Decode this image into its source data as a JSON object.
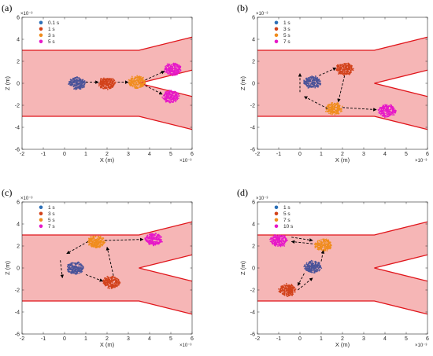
{
  "figure": {
    "colors": {
      "channel_fill": "#f6b6b6",
      "channel_edge": "#e0151b",
      "blue": "#4a5399",
      "red": "#d2421b",
      "orange": "#f08d1e",
      "magenta": "#e619c8",
      "arrow": "#000000",
      "legend_blue": "#2c6fb7"
    }
  },
  "chart_data": [
    {
      "panel": "(a)",
      "type": "scatter",
      "xlabel": "X (m)",
      "ylabel": "Z (m)",
      "xlim": [
        -2,
        6
      ],
      "ylim": [
        -6,
        6
      ],
      "x_ticks": [
        "-2",
        "-1",
        "0",
        "1",
        "2",
        "3",
        "4",
        "5",
        "6"
      ],
      "y_ticks": [
        "-6",
        "-4",
        "-2",
        "0",
        "2",
        "4",
        "6"
      ],
      "x_exponent": "×10⁻³",
      "y_exponent": "×10⁻³",
      "grid": false,
      "legend_position": "top-left",
      "series": [
        {
          "name": "0.1 s",
          "color": "blue",
          "center": [
            0.6,
            0.0
          ]
        },
        {
          "name": "1 s",
          "color": "red",
          "center": [
            2.0,
            0.0
          ]
        },
        {
          "name": "3 s",
          "color": "orange",
          "center": [
            3.4,
            0.1
          ]
        },
        {
          "name": "5 s",
          "color": "magenta",
          "clouds": [
            [
              5.1,
              1.3
            ],
            [
              5.0,
              -1.2
            ]
          ]
        }
      ],
      "arrows": [
        [
          [
            1.0,
            0.1
          ],
          [
            1.6,
            0.1
          ]
        ],
        [
          [
            2.5,
            0.1
          ],
          [
            3.0,
            0.1
          ]
        ],
        [
          [
            3.8,
            0.3
          ],
          [
            4.7,
            1.1
          ]
        ],
        [
          [
            3.8,
            -0.2
          ],
          [
            4.6,
            -1.0
          ]
        ]
      ]
    },
    {
      "panel": "(b)",
      "type": "scatter",
      "xlabel": "X (m)",
      "ylabel": "Z (m)",
      "xlim": [
        -2,
        6
      ],
      "ylim": [
        -6,
        6
      ],
      "x_ticks": [
        "-2",
        "-1",
        "0",
        "1",
        "2",
        "3",
        "4",
        "5",
        "6"
      ],
      "y_ticks": [
        "-6",
        "-4",
        "-2",
        "0",
        "2",
        "4",
        "6"
      ],
      "x_exponent": "×10⁻³",
      "y_exponent": "×10⁻³",
      "grid": false,
      "legend_position": "top-left",
      "series": [
        {
          "name": "1 s",
          "color": "blue",
          "center": [
            0.6,
            0.1
          ]
        },
        {
          "name": "3 s",
          "color": "red",
          "center": [
            2.1,
            1.3
          ]
        },
        {
          "name": "5 s",
          "color": "orange",
          "center": [
            1.6,
            -2.3
          ]
        },
        {
          "name": "7 s",
          "color": "magenta",
          "center": [
            4.1,
            -2.5
          ]
        }
      ],
      "arrows": [
        [
          [
            0.9,
            0.7
          ],
          [
            1.7,
            1.4
          ]
        ],
        [
          [
            2.1,
            0.7
          ],
          [
            1.8,
            -1.7
          ]
        ],
        [
          [
            1.3,
            -2.3
          ],
          [
            0.2,
            -1.2
          ]
        ],
        [
          [
            0.0,
            -0.8
          ],
          [
            0.0,
            0.9
          ]
        ],
        [
          [
            2.0,
            -2.2
          ],
          [
            3.6,
            -2.4
          ]
        ]
      ]
    },
    {
      "panel": "(c)",
      "type": "scatter",
      "xlabel": "X (m)",
      "ylabel": "Z (m)",
      "xlim": [
        -2,
        6
      ],
      "ylim": [
        -6,
        6
      ],
      "x_ticks": [
        "-2",
        "-1",
        "0",
        "1",
        "2",
        "3",
        "4",
        "5",
        "6"
      ],
      "y_ticks": [
        "-6",
        "-4",
        "-2",
        "0",
        "2",
        "4",
        "6"
      ],
      "x_exponent": "×10⁻³",
      "y_exponent": "×10⁻³",
      "grid": false,
      "legend_position": "top-left",
      "series": [
        {
          "name": "1 s",
          "color": "blue",
          "center": [
            0.5,
            0.0
          ]
        },
        {
          "name": "3 s",
          "color": "red",
          "center": [
            2.2,
            -1.3
          ]
        },
        {
          "name": "5 s",
          "color": "orange",
          "center": [
            1.5,
            2.4
          ]
        },
        {
          "name": "7 s",
          "color": "magenta",
          "center": [
            4.2,
            2.6
          ]
        }
      ],
      "arrows": [
        [
          [
            1.0,
            -0.6
          ],
          [
            1.8,
            -1.2
          ]
        ],
        [
          [
            2.3,
            -0.7
          ],
          [
            2.0,
            1.9
          ]
        ],
        [
          [
            1.1,
            2.4
          ],
          [
            0.1,
            1.3
          ]
        ],
        [
          [
            -0.2,
            0.7
          ],
          [
            -0.1,
            -0.9
          ]
        ],
        [
          [
            1.9,
            2.5
          ],
          [
            3.7,
            2.6
          ]
        ]
      ]
    },
    {
      "panel": "(d)",
      "type": "scatter",
      "xlabel": "X (m)",
      "ylabel": "Z (m)",
      "xlim": [
        -2,
        6
      ],
      "ylim": [
        -6,
        6
      ],
      "x_ticks": [
        "-2",
        "-1",
        "0",
        "1",
        "2",
        "3",
        "4",
        "5",
        "6"
      ],
      "y_ticks": [
        "-6",
        "-4",
        "-2",
        "0",
        "2",
        "4",
        "6"
      ],
      "x_exponent": "×10⁻³",
      "y_exponent": "×10⁻³",
      "grid": false,
      "legend_position": "top-left",
      "series": [
        {
          "name": "1 s",
          "color": "blue",
          "center": [
            0.6,
            0.1
          ]
        },
        {
          "name": "5 s",
          "color": "red",
          "center": [
            -0.6,
            -2.0
          ]
        },
        {
          "name": "7 s",
          "color": "orange",
          "center": [
            1.1,
            2.1
          ]
        },
        {
          "name": "10 s",
          "color": "magenta",
          "center": [
            -1.0,
            2.5
          ]
        }
      ],
      "arrows": [
        [
          [
            0.2,
            -0.5
          ],
          [
            -0.1,
            -1.6
          ]
        ],
        [
          [
            -0.1,
            -2.0
          ],
          [
            0.6,
            -0.9
          ]
        ],
        [
          [
            1.0,
            0.6
          ],
          [
            1.1,
            1.6
          ]
        ],
        [
          [
            0.6,
            2.2
          ],
          [
            -0.4,
            2.4
          ]
        ],
        [
          [
            -0.4,
            2.8
          ],
          [
            0.6,
            2.5
          ]
        ]
      ]
    }
  ]
}
